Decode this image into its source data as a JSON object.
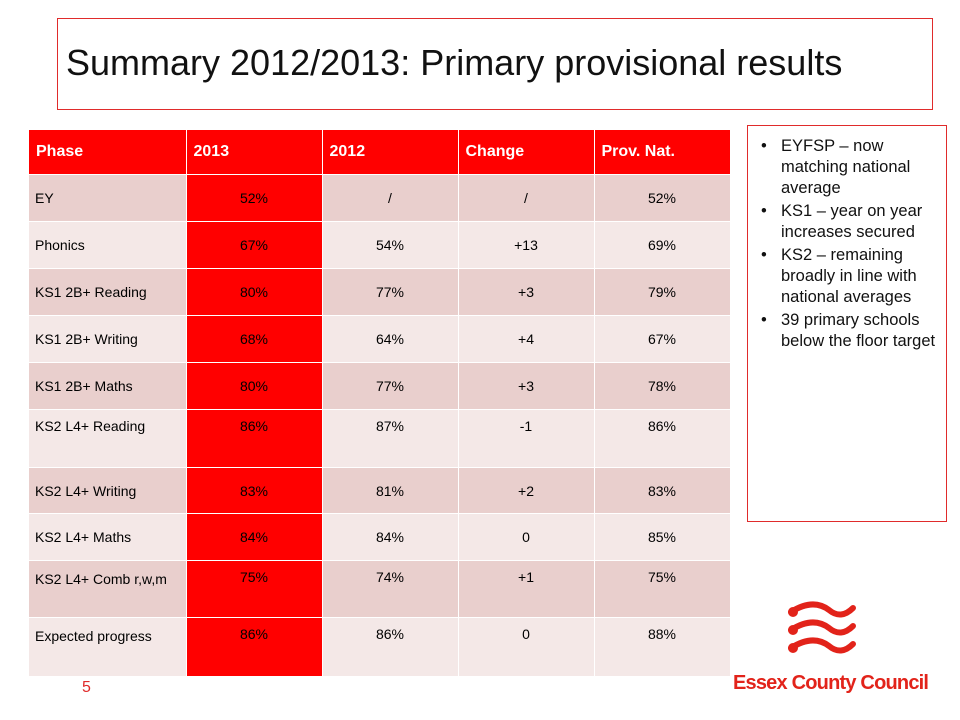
{
  "slide": {
    "title": "Summary 2012/2013:  Primary provisional results",
    "page_number": "5"
  },
  "table": {
    "headers": [
      "Phase",
      "2013",
      "2012",
      "Change",
      "Prov. Nat."
    ],
    "rows": [
      [
        "EY",
        "52%",
        "/",
        "/",
        "52%"
      ],
      [
        "Phonics",
        "67%",
        "54%",
        "+13",
        "69%"
      ],
      [
        "KS1 2B+ Reading",
        "80%",
        "77%",
        "+3",
        "79%"
      ],
      [
        "KS1 2B+ Writing",
        "68%",
        "64%",
        "+4",
        "67%"
      ],
      [
        "KS1 2B+ Maths",
        "80%",
        "77%",
        "+3",
        "78%"
      ],
      [
        "KS2 L4+ Reading",
        "86%",
        "87%",
        "-1",
        "86%"
      ],
      [
        "KS2 L4+ Writing",
        "83%",
        "81%",
        "+2",
        "83%"
      ],
      [
        "KS2 L4+ Maths",
        "84%",
        "84%",
        "0",
        "85%"
      ],
      [
        "KS2 L4+ Comb r,w,m",
        "75%",
        "74%",
        "+1",
        "75%"
      ],
      [
        "Expected progress",
        "86%",
        "86%",
        "0",
        "88%"
      ]
    ]
  },
  "sidebar": {
    "bullets": [
      "EYFSP – now matching national average",
      "KS1 – year on year increases secured",
      "KS2 – remaining broadly in line with national averages",
      "39 primary schools below the floor target"
    ]
  },
  "logo": {
    "text": "Essex County Council",
    "icon": "three-seaxes-icon"
  },
  "colors": {
    "accent_red": "#ff0000",
    "row_dark": "#e9cfcd",
    "row_light": "#f4e8e7",
    "brand_red": "#e2231a"
  }
}
